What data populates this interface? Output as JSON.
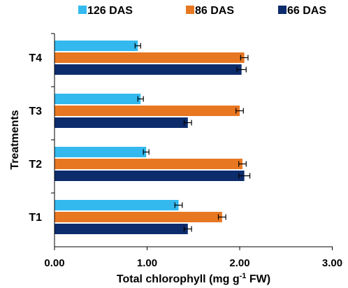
{
  "chart_data": {
    "type": "bar",
    "orientation": "horizontal",
    "categories": [
      "T1",
      "T2",
      "T3",
      "T4"
    ],
    "series": [
      {
        "name": "126 DAS",
        "color": "#33B9EE",
        "values": [
          1.34,
          0.99,
          0.93,
          0.9
        ],
        "errors": [
          0.04,
          0.03,
          0.03,
          0.03
        ]
      },
      {
        "name": "86 DAS",
        "color": "#E87722",
        "values": [
          1.81,
          2.03,
          2.0,
          2.05
        ],
        "errors": [
          0.04,
          0.04,
          0.04,
          0.04
        ]
      },
      {
        "name": "66 DAS",
        "color": "#0D2C6C",
        "values": [
          1.44,
          2.05,
          1.44,
          2.02
        ],
        "errors": [
          0.04,
          0.06,
          0.04,
          0.05
        ]
      }
    ],
    "legend": [
      "126 DAS",
      "86 DAS",
      "66 DAS"
    ],
    "xlabel_main": "Total chlorophyll (mg g",
    "xlabel_sup": "-1",
    "xlabel_tail": " FW)",
    "ylabel": "Treatments",
    "xlim": [
      0,
      3
    ],
    "xticks": [
      "0.00",
      "1.00",
      "2.00",
      "3.00"
    ],
    "grid": false,
    "legend_position": "top"
  }
}
